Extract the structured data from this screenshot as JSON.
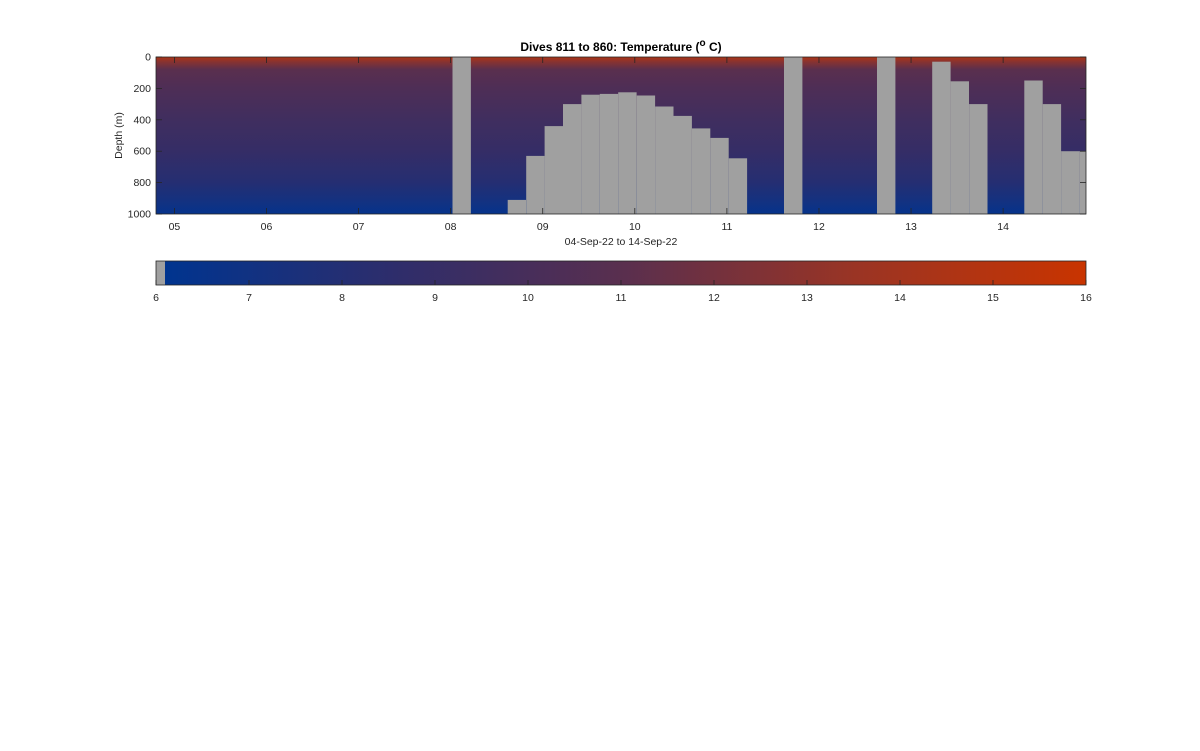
{
  "chart_data": [
    {
      "type": "heatmap",
      "title": "Dives 811 to 860: Temperature (",
      "title_superscript": "o",
      "title_suffix": " C)",
      "xlabel": "04-Sep-22 to 14-Sep-22",
      "ylabel": "Depth (m)",
      "xlim": [
        4.8,
        14.9
      ],
      "ylim": [
        0,
        1000
      ],
      "y_reversed": true,
      "x_ticks": [
        {
          "value": 5,
          "label": "05"
        },
        {
          "value": 6,
          "label": "06"
        },
        {
          "value": 7,
          "label": "07"
        },
        {
          "value": 8,
          "label": "08"
        },
        {
          "value": 9,
          "label": "09"
        },
        {
          "value": 10,
          "label": "10"
        },
        {
          "value": 11,
          "label": "11"
        },
        {
          "value": 12,
          "label": "12"
        },
        {
          "value": 13,
          "label": "13"
        },
        {
          "value": 14,
          "label": "14"
        }
      ],
      "y_ticks": [
        {
          "value": 0,
          "label": "0"
        },
        {
          "value": 200,
          "label": "200"
        },
        {
          "value": 400,
          "label": "400"
        },
        {
          "value": 600,
          "label": "600"
        },
        {
          "value": 800,
          "label": "800"
        },
        {
          "value": 1000,
          "label": "1000"
        }
      ],
      "temperature_profile": [
        {
          "depth": 0,
          "temperature": 14.5
        },
        {
          "depth": 30,
          "temperature": 12.8
        },
        {
          "depth": 80,
          "temperature": 11.0
        },
        {
          "depth": 200,
          "temperature": 10.3
        },
        {
          "depth": 400,
          "temperature": 9.5
        },
        {
          "depth": 600,
          "temperature": 8.9
        },
        {
          "depth": 800,
          "temperature": 8.0
        },
        {
          "depth": 900,
          "temperature": 7.2
        },
        {
          "depth": 1000,
          "temperature": 6.3
        }
      ],
      "no_data_color": "#a0a0a0",
      "no_data_regions": [
        {
          "x0": 8.02,
          "x1": 8.22,
          "depth_top": 0
        },
        {
          "x0": 8.62,
          "x1": 8.82,
          "depth_top": 910
        },
        {
          "x0": 8.82,
          "x1": 9.02,
          "depth_top": 630
        },
        {
          "x0": 9.02,
          "x1": 9.22,
          "depth_top": 440
        },
        {
          "x0": 9.22,
          "x1": 9.42,
          "depth_top": 300
        },
        {
          "x0": 9.42,
          "x1": 9.62,
          "depth_top": 240
        },
        {
          "x0": 9.62,
          "x1": 9.82,
          "depth_top": 235
        },
        {
          "x0": 9.82,
          "x1": 10.02,
          "depth_top": 225
        },
        {
          "x0": 10.02,
          "x1": 10.22,
          "depth_top": 245
        },
        {
          "x0": 10.22,
          "x1": 10.42,
          "depth_top": 315
        },
        {
          "x0": 10.42,
          "x1": 10.62,
          "depth_top": 375
        },
        {
          "x0": 10.62,
          "x1": 10.82,
          "depth_top": 455
        },
        {
          "x0": 10.82,
          "x1": 11.02,
          "depth_top": 515
        },
        {
          "x0": 11.02,
          "x1": 11.22,
          "depth_top": 645
        },
        {
          "x0": 11.62,
          "x1": 11.82,
          "depth_top": 0
        },
        {
          "x0": 12.63,
          "x1": 12.83,
          "depth_top": 0
        },
        {
          "x0": 13.23,
          "x1": 13.43,
          "depth_top": 30
        },
        {
          "x0": 13.43,
          "x1": 13.63,
          "depth_top": 155
        },
        {
          "x0": 13.63,
          "x1": 13.83,
          "depth_top": 300
        },
        {
          "x0": 14.23,
          "x1": 14.43,
          "depth_top": 150
        },
        {
          "x0": 14.43,
          "x1": 14.63,
          "depth_top": 300
        },
        {
          "x0": 14.63,
          "x1": 14.83,
          "depth_top": 600
        },
        {
          "x0": 14.83,
          "x1": 14.9,
          "depth_top": 600
        }
      ]
    },
    {
      "type": "colorbar",
      "range": [
        6,
        16
      ],
      "ticks": [
        {
          "value": 6,
          "label": "6"
        },
        {
          "value": 7,
          "label": "7"
        },
        {
          "value": 8,
          "label": "8"
        },
        {
          "value": 9,
          "label": "9"
        },
        {
          "value": 10,
          "label": "10"
        },
        {
          "value": 11,
          "label": "11"
        },
        {
          "value": 12,
          "label": "12"
        },
        {
          "value": 13,
          "label": "13"
        },
        {
          "value": 14,
          "label": "14"
        },
        {
          "value": 15,
          "label": "15"
        },
        {
          "value": 16,
          "label": "16"
        }
      ],
      "colormap": [
        {
          "value": 6,
          "color": "#00348f"
        },
        {
          "value": 8.5,
          "color": "#2e2d6b"
        },
        {
          "value": 11,
          "color": "#5a2f4e"
        },
        {
          "value": 13.5,
          "color": "#9a3424"
        },
        {
          "value": 16,
          "color": "#c93400"
        }
      ],
      "no_data_color": "#a0a0a0"
    }
  ]
}
